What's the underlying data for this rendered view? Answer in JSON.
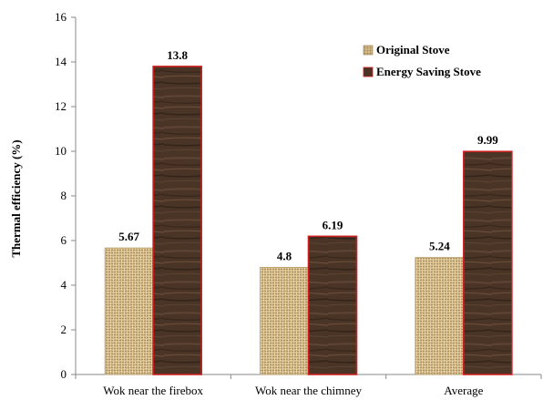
{
  "chart_data": {
    "type": "bar",
    "title": "",
    "xlabel": "",
    "ylabel": "Thermal efficiency (%)",
    "ylim": [
      0,
      16
    ],
    "yticks": [
      0,
      2,
      4,
      6,
      8,
      10,
      12,
      14,
      16
    ],
    "grid": false,
    "legend_position": "top-right",
    "categories": [
      "Wok near the firebox",
      "Wok near the chimney",
      "Average"
    ],
    "series": [
      {
        "name": "Original Stove",
        "values": [
          5.67,
          4.8,
          5.24
        ],
        "labels": [
          "5.67",
          "4.8",
          "5.24"
        ],
        "color": "#d8bf8c",
        "texture": "woven-burlap"
      },
      {
        "name": "Energy Saving Stove",
        "values": [
          13.8,
          6.19,
          9.99
        ],
        "labels": [
          "13.8",
          "6.19",
          "9.99"
        ],
        "color": "#4a3426",
        "texture": "dark-wood",
        "outline": "#cc1f1f"
      }
    ]
  }
}
